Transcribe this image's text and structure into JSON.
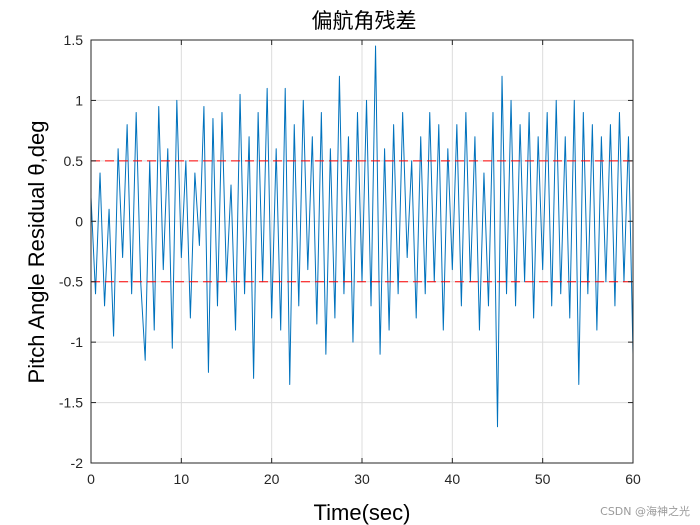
{
  "chart_data": {
    "type": "line",
    "title": "偏航角残差",
    "xlabel": "Time(sec)",
    "ylabel": "Pitch Angle Residual θ,deg",
    "xlim": [
      0,
      60
    ],
    "ylim": [
      -2,
      1.5
    ],
    "xticks": [
      "0",
      "10",
      "20",
      "30",
      "40",
      "50",
      "60"
    ],
    "yticks": [
      "1.5",
      "1",
      "0.5",
      "0",
      "-0.5",
      "-1",
      "-1.5",
      "-2"
    ],
    "grid": true,
    "colors": {
      "series": "#0072BD",
      "threshold": "#FF0000"
    },
    "series": [
      {
        "style": "solid",
        "x": [
          0,
          0.5,
          1,
          1.5,
          2,
          2.5,
          3,
          3.5,
          4,
          4.5,
          5,
          5.5,
          6,
          6.5,
          7,
          7.5,
          8,
          8.5,
          9,
          9.5,
          10,
          10.5,
          11,
          11.5,
          12,
          12.5,
          13,
          13.5,
          14,
          14.5,
          15,
          15.5,
          16,
          16.5,
          17,
          17.5,
          18,
          18.5,
          19,
          19.5,
          20,
          20.5,
          21,
          21.5,
          22,
          22.5,
          23,
          23.5,
          24,
          24.5,
          25,
          25.5,
          26,
          26.5,
          27,
          27.5,
          28,
          28.5,
          29,
          29.5,
          30,
          30.5,
          31,
          31.5,
          32,
          32.5,
          33,
          33.5,
          34,
          34.5,
          35,
          35.5,
          36,
          36.5,
          37,
          37.5,
          38,
          38.5,
          39,
          39.5,
          40,
          40.5,
          41,
          41.5,
          42,
          42.5,
          43,
          43.5,
          44,
          44.5,
          45,
          45.5,
          46,
          46.5,
          47,
          47.5,
          48,
          48.5,
          49,
          49.5,
          50,
          50.5,
          51,
          51.5,
          52,
          52.5,
          53,
          53.5,
          54,
          54.5,
          55,
          55.5,
          56,
          56.5,
          57,
          57.5,
          58,
          58.5,
          59,
          59.5,
          60
        ],
        "y": [
          0.2,
          -0.6,
          0.4,
          -0.7,
          0.1,
          -0.95,
          0.6,
          -0.3,
          0.8,
          -0.6,
          0.9,
          -0.5,
          -1.15,
          0.5,
          -0.9,
          0.95,
          -0.4,
          0.6,
          -1.05,
          1.0,
          -0.3,
          0.5,
          -0.8,
          0.4,
          -0.2,
          0.95,
          -1.25,
          0.85,
          -0.7,
          0.9,
          -0.5,
          0.3,
          -0.9,
          1.05,
          -0.6,
          0.7,
          -1.3,
          0.9,
          -0.5,
          1.1,
          -0.8,
          0.6,
          -0.9,
          1.1,
          -1.35,
          0.8,
          -0.7,
          1.0,
          -0.4,
          0.7,
          -0.85,
          0.9,
          -1.1,
          0.6,
          -0.8,
          1.2,
          -0.6,
          0.7,
          -1.0,
          0.9,
          -0.5,
          1.0,
          -0.7,
          1.45,
          -1.1,
          0.6,
          -0.9,
          0.8,
          -0.6,
          0.9,
          -0.3,
          0.5,
          -0.8,
          0.7,
          -0.6,
          0.9,
          -0.5,
          0.8,
          -0.9,
          0.6,
          -0.4,
          0.8,
          -0.7,
          0.9,
          -0.5,
          0.7,
          -0.9,
          0.4,
          -0.7,
          0.9,
          -1.7,
          1.2,
          -0.6,
          1.0,
          -0.7,
          0.8,
          -0.5,
          0.9,
          -0.8,
          0.7,
          -0.4,
          0.9,
          -0.7,
          1.0,
          -0.6,
          0.7,
          -0.8,
          1.0,
          -1.35,
          0.9,
          -0.6,
          0.8,
          -0.9,
          0.7,
          -0.5,
          0.8,
          -0.7,
          0.9,
          -0.5,
          0.7,
          -1.1
        ]
      },
      {
        "style": "dashed",
        "x": [
          0,
          60
        ],
        "y": [
          0.5,
          0.5
        ]
      },
      {
        "style": "dashed",
        "x": [
          0,
          60
        ],
        "y": [
          -0.5,
          -0.5
        ]
      }
    ]
  },
  "watermark": "CSDN @海神之光"
}
